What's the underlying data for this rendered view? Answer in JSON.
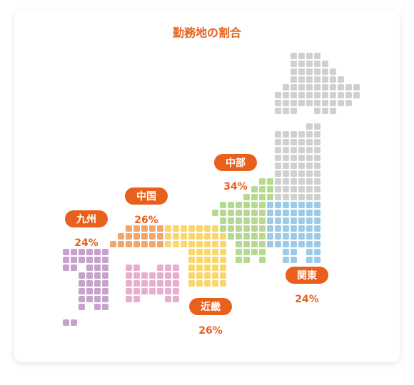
{
  "title": "勤務地の割合",
  "regions": [
    {
      "name": "九州",
      "value": 24,
      "unit": "%"
    },
    {
      "name": "中国",
      "value": 26,
      "unit": "%"
    },
    {
      "name": "中部",
      "value": 34,
      "unit": "%"
    },
    {
      "name": "関東",
      "value": 24,
      "unit": "%"
    },
    {
      "name": "近畿",
      "value": 26,
      "unit": "%"
    }
  ]
}
